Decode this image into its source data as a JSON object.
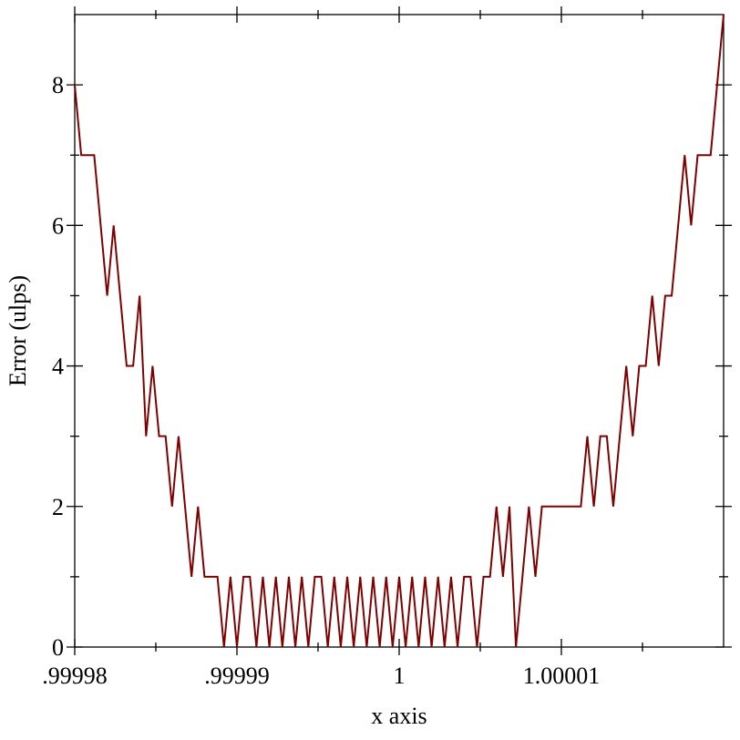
{
  "chart_data": {
    "type": "line",
    "x_label": "x axis",
    "y_label": "Error (ulps)",
    "xlim": [
      0.99998,
      1.00002
    ],
    "xticks": [
      {
        "value": 0.99998,
        "label": ".99998"
      },
      {
        "value": 0.99999,
        "label": ".99999"
      },
      1,
      {
        "value": 1.00001,
        "label": "1.00001"
      }
    ],
    "ylim": [
      0,
      9
    ],
    "yticks": [
      0,
      2,
      4,
      6,
      8
    ],
    "series": [
      {
        "name": "error",
        "color": "#7f0000",
        "x": [
          0.99998,
          0.9999804,
          0.9999808,
          0.9999812,
          0.9999816,
          0.999982,
          0.9999824,
          0.9999828,
          0.9999832,
          0.9999836,
          0.999984,
          0.9999844,
          0.9999848,
          0.9999852,
          0.9999856,
          0.999986,
          0.9999864,
          0.9999868,
          0.9999872,
          0.9999876,
          0.999988,
          0.9999884,
          0.9999888,
          0.9999892,
          0.9999896,
          0.99999,
          0.9999904,
          0.9999908,
          0.9999912,
          0.9999916,
          0.999992,
          0.9999924,
          0.9999928,
          0.9999932,
          0.9999936,
          0.999994,
          0.9999944,
          0.9999948,
          0.9999952,
          0.9999956,
          0.999996,
          0.9999964,
          0.9999968,
          0.9999972,
          0.9999976,
          0.999998,
          0.9999984,
          0.9999988,
          0.9999992,
          0.9999996,
          1,
          1.0000004,
          1.0000008,
          1.0000012,
          1.0000016,
          1.000002,
          1.0000024,
          1.0000028,
          1.0000032,
          1.0000036,
          1.000004,
          1.0000044,
          1.0000048,
          1.0000052,
          1.0000056,
          1.000006,
          1.0000064,
          1.0000068,
          1.0000072,
          1.0000076,
          1.000008,
          1.0000084,
          1.0000088,
          1.0000092,
          1.0000096,
          1.00001,
          1.0000104,
          1.0000108,
          1.0000112,
          1.0000116,
          1.000012,
          1.0000124,
          1.0000128,
          1.0000132,
          1.0000136,
          1.000014,
          1.0000144,
          1.0000148,
          1.0000152,
          1.0000156,
          1.000016,
          1.0000164,
          1.0000168,
          1.0000172,
          1.0000176,
          1.000018,
          1.0000184,
          1.0000188,
          1.0000192,
          1.0000196,
          1.00002
        ],
        "values": [
          8,
          7,
          7,
          7,
          6,
          5,
          6,
          5,
          4,
          4,
          5,
          3,
          4,
          3,
          3,
          2,
          3,
          2,
          1,
          2,
          1,
          1,
          1,
          0,
          1,
          0,
          1,
          1,
          0,
          1,
          0,
          1,
          0,
          1,
          0,
          1,
          0,
          1,
          1,
          0,
          1,
          0,
          1,
          0,
          1,
          0,
          1,
          0,
          1,
          0,
          1,
          0,
          1,
          0,
          1,
          0,
          1,
          0,
          1,
          0,
          1,
          1,
          0,
          1,
          1,
          2,
          1,
          2,
          0,
          1,
          2,
          1,
          2,
          2,
          2,
          2,
          2,
          2,
          2,
          3,
          2,
          3,
          3,
          2,
          3,
          4,
          3,
          4,
          4,
          5,
          4,
          5,
          5,
          6,
          7,
          6,
          7,
          7,
          7,
          8,
          9
        ]
      }
    ]
  }
}
